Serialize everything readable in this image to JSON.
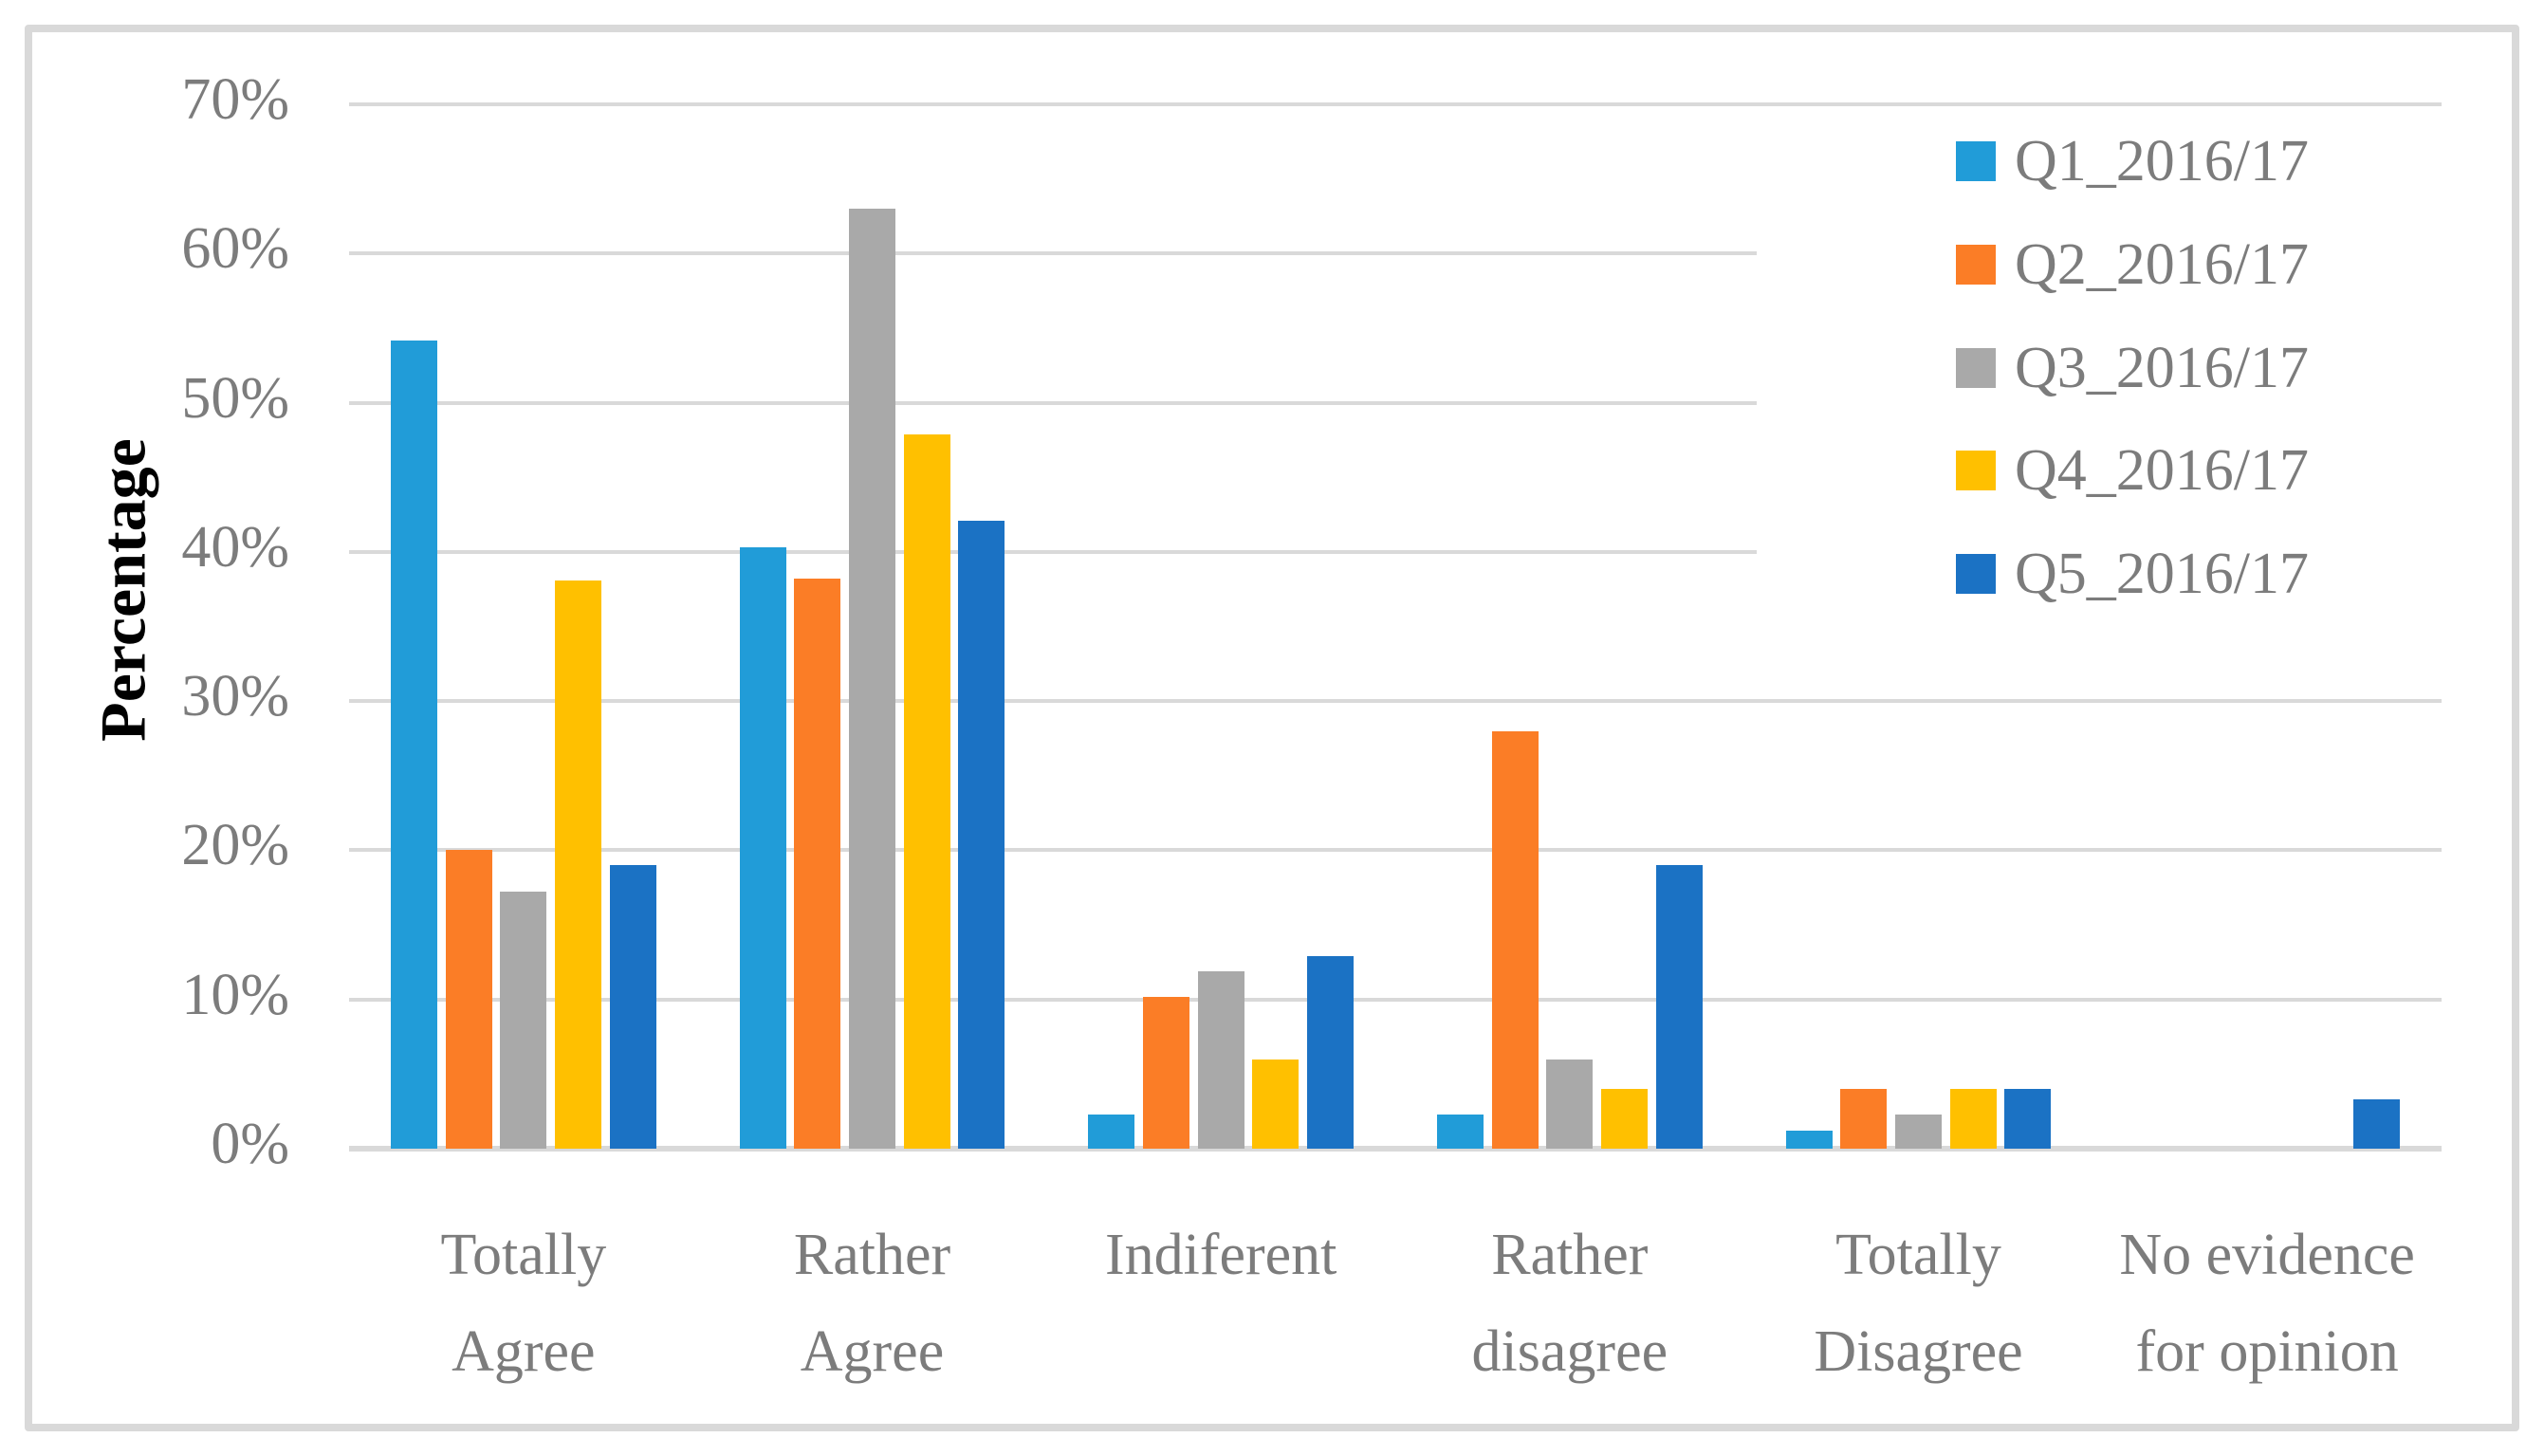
{
  "figure": {
    "y_axis_title": "Percentage"
  },
  "chart_data": {
    "type": "bar",
    "title": "",
    "xlabel": "",
    "ylabel": "Percentage",
    "grid": true,
    "legend_position": "top-right",
    "gridline_color": "#D9D9D9",
    "text_color": "#7C7C7C",
    "ylim": [
      0,
      70
    ],
    "y_axis": {
      "min": 0,
      "max": 70,
      "step": 10,
      "tick_labels": [
        "0%",
        "10%",
        "20%",
        "30%",
        "40%",
        "50%",
        "60%",
        "70%"
      ]
    },
    "categories": [
      {
        "label": "Totally Agree",
        "lines": [
          "Totally",
          "Agree"
        ]
      },
      {
        "label": "Rather Agree",
        "lines": [
          "Rather",
          "Agree"
        ]
      },
      {
        "label": "Indiferent",
        "lines": [
          "Indiferent"
        ]
      },
      {
        "label": "Rather disagree",
        "lines": [
          "Rather",
          "disagree"
        ]
      },
      {
        "label": "Totally Disagree",
        "lines": [
          "Totally",
          "Disagree"
        ]
      },
      {
        "label": "No evidence for opinion",
        "lines": [
          "No evidence",
          "for opinion"
        ]
      }
    ],
    "series": [
      {
        "name": "Q1_2016/17",
        "color": "#219CD8",
        "values": [
          54.2,
          40.3,
          2.3,
          2.3,
          1.2,
          0
        ]
      },
      {
        "name": "Q2_2016/17",
        "color": "#FB7D26",
        "values": [
          20.0,
          38.2,
          10.2,
          28.0,
          4.0,
          0
        ]
      },
      {
        "name": "Q3_2016/17",
        "color": "#A9A9A9",
        "values": [
          17.2,
          63.0,
          11.9,
          6.0,
          2.3,
          0
        ]
      },
      {
        "name": "Q4_2016/17",
        "color": "#FFC000",
        "values": [
          38.1,
          47.9,
          6.0,
          4.0,
          4.0,
          0
        ]
      },
      {
        "name": "Q5_2016/17",
        "color": "#1B72C4",
        "values": [
          19.0,
          42.1,
          12.9,
          19.0,
          4.0,
          3.3
        ]
      }
    ]
  }
}
